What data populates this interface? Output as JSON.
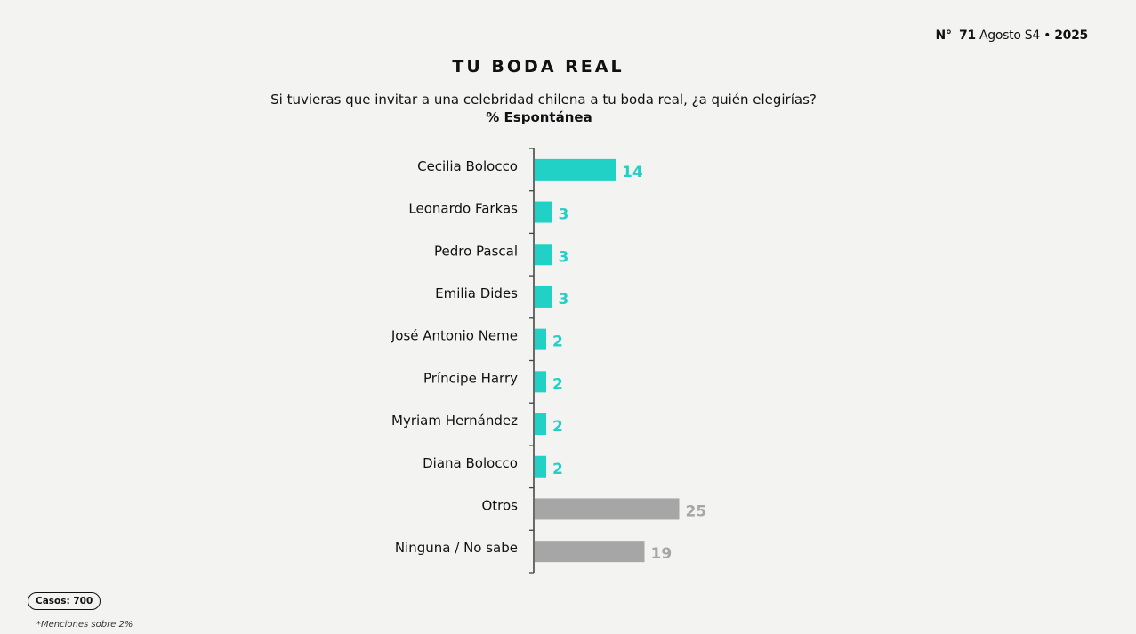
{
  "header": {
    "issue_prefix": "N°",
    "issue_number": "71",
    "issue_label": "Agosto S4",
    "separator": "•",
    "year": "2025"
  },
  "chart_data": {
    "type": "bar",
    "orientation": "horizontal",
    "title": "TU BODA REAL",
    "question": "Si tuvieras que invitar a una celebridad chilena a tu boda real, ¿a quién elegirías?",
    "subtitle": "% Espontánea",
    "categories": [
      "Cecilia Bolocco",
      "Leonardo Farkas",
      "Pedro Pascal",
      "Emilia Dides",
      "José Antonio Neme",
      "Príncipe Harry",
      "Myriam Hernández",
      "Diana Bolocco",
      "Otros",
      "Ninguna / No sabe"
    ],
    "values": [
      14,
      3,
      3,
      3,
      2,
      2,
      2,
      2,
      25,
      19
    ],
    "bar_colors": [
      "#22d1c6",
      "#22d1c6",
      "#22d1c6",
      "#22d1c6",
      "#22d1c6",
      "#22d1c6",
      "#22d1c6",
      "#22d1c6",
      "#a6a6a6",
      "#a6a6a6"
    ],
    "label_colors": [
      "#22d1c6",
      "#22d1c6",
      "#22d1c6",
      "#22d1c6",
      "#22d1c6",
      "#22d1c6",
      "#22d1c6",
      "#22d1c6",
      "#a6a6a6",
      "#a6a6a6"
    ],
    "grid": false
  },
  "footer": {
    "casos": "Casos: 700",
    "note": "*Menciones sobre 2%"
  }
}
